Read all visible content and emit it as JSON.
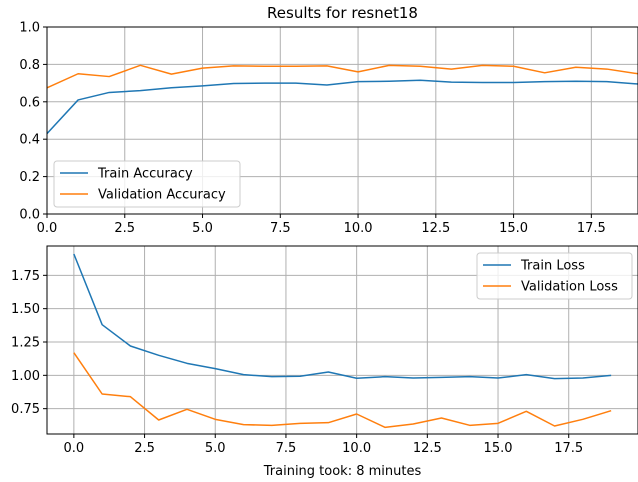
{
  "chart_data": [
    {
      "type": "line",
      "title": "Results for resnet18",
      "xlabel": "",
      "ylabel": "",
      "xlim": [
        0,
        19
      ],
      "ylim": [
        0,
        1.0
      ],
      "xticks": [
        "0.0",
        "2.5",
        "5.0",
        "7.5",
        "10.0",
        "12.5",
        "15.0",
        "17.5"
      ],
      "yticks": [
        "0.0",
        "0.2",
        "0.4",
        "0.6",
        "0.8",
        "1.0"
      ],
      "grid": true,
      "legend_position": "bottom-left",
      "x": [
        0,
        1,
        2,
        3,
        4,
        5,
        6,
        7,
        8,
        9,
        10,
        11,
        12,
        13,
        14,
        15,
        16,
        17,
        18,
        19
      ],
      "series": [
        {
          "name": "Train Accuracy",
          "color": "#1f77b4",
          "values": [
            0.43,
            0.61,
            0.65,
            0.66,
            0.675,
            0.685,
            0.698,
            0.7,
            0.7,
            0.69,
            0.708,
            0.71,
            0.715,
            0.705,
            0.703,
            0.703,
            0.708,
            0.71,
            0.708,
            0.695
          ]
        },
        {
          "name": "Validation Accuracy",
          "color": "#ff7f0e",
          "values": [
            0.675,
            0.75,
            0.735,
            0.795,
            0.748,
            0.78,
            0.792,
            0.79,
            0.79,
            0.792,
            0.76,
            0.795,
            0.79,
            0.775,
            0.795,
            0.79,
            0.755,
            0.785,
            0.775,
            0.75
          ]
        }
      ]
    },
    {
      "type": "line",
      "title": "",
      "xlabel": "Training took: 8 minutes",
      "ylabel": "",
      "xlim": [
        -0.95,
        19.95
      ],
      "ylim": [
        0.56,
        1.97
      ],
      "xticks": [
        "0.0",
        "2.5",
        "5.0",
        "7.5",
        "10.0",
        "12.5",
        "15.0",
        "17.5"
      ],
      "yticks": [
        "0.75",
        "1.00",
        "1.25",
        "1.50",
        "1.75"
      ],
      "grid": true,
      "legend_position": "top-right",
      "x": [
        0,
        1,
        2,
        3,
        4,
        5,
        6,
        7,
        8,
        9,
        10,
        11,
        12,
        13,
        14,
        15,
        16,
        17,
        18,
        19
      ],
      "series": [
        {
          "name": "Train Loss",
          "color": "#1f77b4",
          "values": [
            1.91,
            1.38,
            1.22,
            1.15,
            1.09,
            1.05,
            1.005,
            0.99,
            0.993,
            1.025,
            0.978,
            0.99,
            0.98,
            0.985,
            0.99,
            0.98,
            1.005,
            0.975,
            0.98,
            1.0
          ]
        },
        {
          "name": "Validation Loss",
          "color": "#ff7f0e",
          "values": [
            1.17,
            0.86,
            0.84,
            0.665,
            0.745,
            0.67,
            0.63,
            0.625,
            0.64,
            0.645,
            0.71,
            0.61,
            0.635,
            0.68,
            0.625,
            0.64,
            0.73,
            0.62,
            0.67,
            0.735
          ]
        }
      ]
    }
  ]
}
